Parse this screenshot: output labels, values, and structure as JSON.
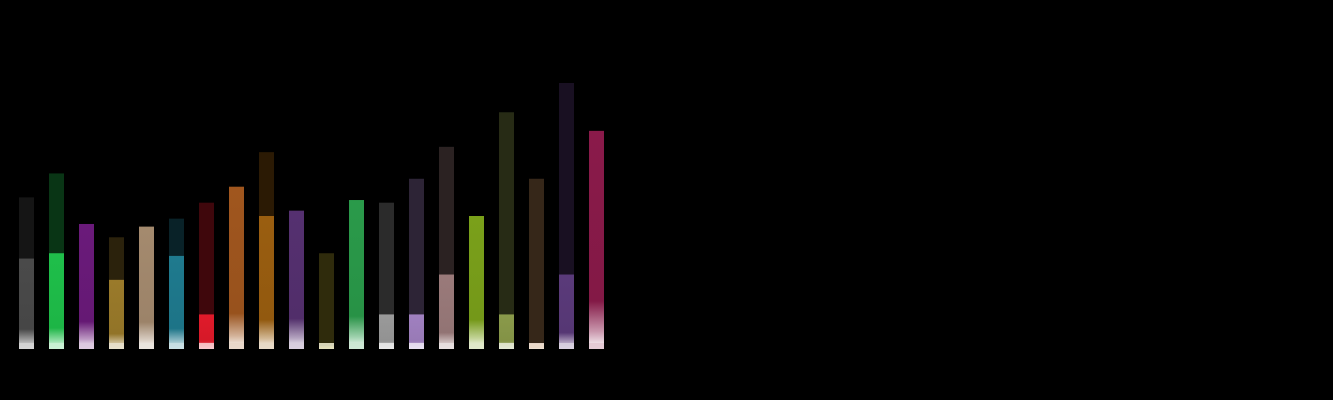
{
  "chart_data": {
    "type": "bar",
    "background": "#000000",
    "ylim": [
      0,
      100
    ],
    "grid": false,
    "legend": "none",
    "bars": [
      {
        "outer": 57,
        "inner": 34,
        "color": "#4a4a4a"
      },
      {
        "outer": 66,
        "inner": 36,
        "color": "#1fbf4a"
      },
      {
        "outer": 47,
        "inner": 47,
        "color": "#6a1a7a"
      },
      {
        "outer": 42,
        "inner": 26,
        "color": "#9a7a2a"
      },
      {
        "outer": 46,
        "inner": 46,
        "color": "#a48a6e"
      },
      {
        "outer": 49,
        "inner": 35,
        "color": "#1f7a8e"
      },
      {
        "outer": 55,
        "inner": 13,
        "color": "#e01a2a"
      },
      {
        "outer": 61,
        "inner": 61,
        "color": "#a0561e"
      },
      {
        "outer": 74,
        "inner": 50,
        "color": "#9a5e10"
      },
      {
        "outer": 52,
        "inner": 52,
        "color": "#553070"
      },
      {
        "outer": 36,
        "inner": 1,
        "color": "#a89a2a"
      },
      {
        "outer": 56,
        "inner": 56,
        "color": "#2a9a4a"
      },
      {
        "outer": 55,
        "inner": 13,
        "color": "#9a9a9a"
      },
      {
        "outer": 64,
        "inner": 13,
        "color": "#a080c0"
      },
      {
        "outer": 76,
        "inner": 28,
        "color": "#9a7a7a"
      },
      {
        "outer": 50,
        "inner": 50,
        "color": "#7aa01a"
      },
      {
        "outer": 89,
        "inner": 13,
        "color": "#8a9a4a"
      },
      {
        "outer": 64,
        "inner": 2,
        "color": "#c08a5a"
      },
      {
        "outer": 100,
        "inner": 28,
        "color": "#5a3a7a"
      },
      {
        "outer": 82,
        "inner": 82,
        "color": "#8a1a4a"
      }
    ]
  }
}
